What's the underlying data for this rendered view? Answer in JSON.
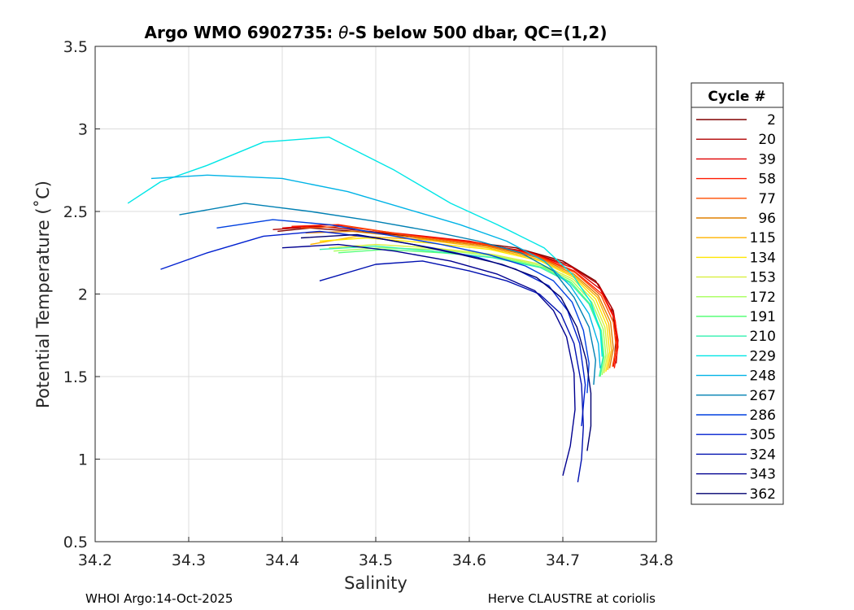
{
  "chart_data": {
    "type": "line",
    "title_prefix": "Argo WMO 6902735: ",
    "title_symbol": "θ",
    "title_suffix": "-S below 500 dbar,  QC=(1,2)",
    "xlabel": "Salinity",
    "ylabel": "Potential Temperature (˚C)",
    "xlim": [
      34.2,
      34.8
    ],
    "ylim": [
      0.5,
      3.5
    ],
    "xticks": [
      "34.2",
      "34.3",
      "34.4",
      "34.5",
      "34.6",
      "34.7",
      "34.8"
    ],
    "yticks": [
      "0.5",
      "1",
      "1.5",
      "2",
      "2.5",
      "3",
      "3.5"
    ],
    "grid": true,
    "legend": {
      "title": "Cycle #",
      "position": "right",
      "entries": [
        {
          "label": "2",
          "color": "#800000"
        },
        {
          "label": "20",
          "color": "#b00000"
        },
        {
          "label": "39",
          "color": "#e00000"
        },
        {
          "label": "58",
          "color": "#ff1a00"
        },
        {
          "label": "77",
          "color": "#ff4d00"
        },
        {
          "label": "96",
          "color": "#e08000"
        },
        {
          "label": "115",
          "color": "#ffb300"
        },
        {
          "label": "134",
          "color": "#ffe600"
        },
        {
          "label": "153",
          "color": "#d9f040"
        },
        {
          "label": "172",
          "color": "#a6ff59"
        },
        {
          "label": "191",
          "color": "#59ff7a"
        },
        {
          "label": "210",
          "color": "#33f0b0"
        },
        {
          "label": "229",
          "color": "#00e6e6"
        },
        {
          "label": "248",
          "color": "#00b3e6"
        },
        {
          "label": "267",
          "color": "#0080b3"
        },
        {
          "label": "286",
          "color": "#0040e0"
        },
        {
          "label": "305",
          "color": "#0020d0"
        },
        {
          "label": "324",
          "color": "#0010b0"
        },
        {
          "label": "343",
          "color": "#000090"
        },
        {
          "label": "362",
          "color": "#000070"
        }
      ]
    },
    "series": [
      {
        "name": "2",
        "color": "#800000",
        "s": [
          34.395,
          34.43,
          34.5,
          34.58,
          34.65,
          34.7,
          34.735,
          34.752,
          34.757,
          34.755
        ],
        "t": [
          2.38,
          2.4,
          2.37,
          2.33,
          2.28,
          2.2,
          2.08,
          1.92,
          1.75,
          1.6
        ]
      },
      {
        "name": "20",
        "color": "#b00000",
        "s": [
          34.39,
          34.44,
          34.51,
          34.59,
          34.66,
          34.705,
          34.738,
          34.754,
          34.759,
          34.757
        ],
        "t": [
          2.39,
          2.41,
          2.37,
          2.32,
          2.26,
          2.18,
          2.06,
          1.9,
          1.72,
          1.58
        ]
      },
      {
        "name": "39",
        "color": "#e00000",
        "s": [
          34.4,
          34.45,
          34.52,
          34.6,
          34.665,
          34.71,
          34.74,
          34.755,
          34.758,
          34.754
        ],
        "t": [
          2.4,
          2.42,
          2.37,
          2.32,
          2.25,
          2.16,
          2.03,
          1.86,
          1.7,
          1.56
        ]
      },
      {
        "name": "58",
        "color": "#ff1a00",
        "s": [
          34.41,
          34.46,
          34.53,
          34.61,
          34.67,
          34.712,
          34.742,
          34.756,
          34.759,
          34.755
        ],
        "t": [
          2.41,
          2.42,
          2.36,
          2.31,
          2.24,
          2.14,
          2.0,
          1.84,
          1.68,
          1.55
        ]
      },
      {
        "name": "77",
        "color": "#ff4d00",
        "s": [
          34.42,
          34.47,
          34.54,
          34.615,
          34.672,
          34.713,
          34.741,
          34.754,
          34.757,
          34.753
        ],
        "t": [
          2.4,
          2.41,
          2.35,
          2.3,
          2.23,
          2.13,
          1.99,
          1.83,
          1.68,
          1.56
        ]
      },
      {
        "name": "96",
        "color": "#e08000",
        "s": [
          34.425,
          34.475,
          34.545,
          34.618,
          34.674,
          34.712,
          34.738,
          34.751,
          34.754,
          34.75
        ],
        "t": [
          2.37,
          2.38,
          2.34,
          2.29,
          2.22,
          2.12,
          1.99,
          1.83,
          1.67,
          1.55
        ]
      },
      {
        "name": "115",
        "color": "#ffb300",
        "s": [
          34.43,
          34.48,
          34.55,
          34.62,
          34.675,
          34.712,
          34.737,
          34.749,
          34.752,
          34.748
        ],
        "t": [
          2.3,
          2.35,
          2.33,
          2.28,
          2.21,
          2.11,
          1.98,
          1.82,
          1.66,
          1.54
        ]
      },
      {
        "name": "134",
        "color": "#ffe600",
        "s": [
          34.44,
          34.49,
          34.555,
          34.622,
          34.676,
          34.712,
          34.735,
          34.747,
          34.75,
          34.746
        ],
        "t": [
          2.32,
          2.34,
          2.31,
          2.27,
          2.2,
          2.1,
          1.97,
          1.81,
          1.65,
          1.53
        ]
      },
      {
        "name": "153",
        "color": "#d9f040",
        "s": [
          34.45,
          34.5,
          34.56,
          34.625,
          34.677,
          34.711,
          34.733,
          34.745,
          34.748,
          34.744
        ],
        "t": [
          2.28,
          2.3,
          2.28,
          2.24,
          2.18,
          2.09,
          1.96,
          1.8,
          1.64,
          1.52
        ]
      },
      {
        "name": "172",
        "color": "#a6ff59",
        "s": [
          34.455,
          34.505,
          34.565,
          34.628,
          34.678,
          34.71,
          34.731,
          34.743,
          34.746,
          34.742
        ],
        "t": [
          2.26,
          2.28,
          2.27,
          2.23,
          2.17,
          2.08,
          1.95,
          1.79,
          1.63,
          1.51
        ]
      },
      {
        "name": "191",
        "color": "#59ff7a",
        "s": [
          34.46,
          34.51,
          34.57,
          34.63,
          34.679,
          34.709,
          34.729,
          34.741,
          34.744,
          34.74
        ],
        "t": [
          2.25,
          2.27,
          2.25,
          2.22,
          2.16,
          2.07,
          1.94,
          1.78,
          1.62,
          1.5
        ]
      },
      {
        "name": "210",
        "color": "#33f0b0",
        "s": [
          34.44,
          34.5,
          34.56,
          34.625,
          34.676,
          34.707,
          34.728,
          34.74,
          34.743,
          34.739
        ],
        "t": [
          2.27,
          2.29,
          2.26,
          2.22,
          2.16,
          2.07,
          1.94,
          1.78,
          1.62,
          1.5
        ]
      },
      {
        "name": "229",
        "color": "#00e6e6",
        "s": [
          34.235,
          34.27,
          34.32,
          34.38,
          34.45,
          34.52,
          34.58,
          34.63,
          34.68,
          34.71,
          34.73,
          34.74,
          34.742
        ],
        "t": [
          2.55,
          2.68,
          2.78,
          2.92,
          2.95,
          2.75,
          2.55,
          2.42,
          2.28,
          2.12,
          1.95,
          1.78,
          1.62
        ]
      },
      {
        "name": "248",
        "color": "#00b3e6",
        "s": [
          34.26,
          34.32,
          34.4,
          34.47,
          34.53,
          34.59,
          34.64,
          34.68,
          34.708,
          34.728,
          34.738,
          34.74
        ],
        "t": [
          2.7,
          2.72,
          2.7,
          2.62,
          2.52,
          2.42,
          2.32,
          2.2,
          2.05,
          1.88,
          1.7,
          1.55
        ]
      },
      {
        "name": "267",
        "color": "#0080b3",
        "s": [
          34.29,
          34.36,
          34.43,
          34.5,
          34.56,
          34.61,
          34.655,
          34.69,
          34.712,
          34.728,
          34.735,
          34.733
        ],
        "t": [
          2.48,
          2.55,
          2.5,
          2.44,
          2.38,
          2.32,
          2.25,
          2.14,
          1.98,
          1.8,
          1.6,
          1.45
        ]
      },
      {
        "name": "286",
        "color": "#0040e0",
        "s": [
          34.33,
          34.39,
          34.45,
          34.51,
          34.57,
          34.62,
          34.66,
          34.69,
          34.71,
          34.722,
          34.728,
          34.726
        ],
        "t": [
          2.4,
          2.45,
          2.42,
          2.36,
          2.3,
          2.24,
          2.17,
          2.08,
          1.95,
          1.78,
          1.58,
          1.4
        ]
      },
      {
        "name": "305",
        "color": "#0020d0",
        "s": [
          34.27,
          34.32,
          34.38,
          34.44,
          34.5,
          34.56,
          34.61,
          34.65,
          34.685,
          34.705,
          34.718,
          34.724,
          34.72
        ],
        "t": [
          2.15,
          2.25,
          2.35,
          2.38,
          2.34,
          2.28,
          2.22,
          2.15,
          2.05,
          1.9,
          1.7,
          1.45,
          1.2
        ]
      },
      {
        "name": "324",
        "color": "#0010b0",
        "s": [
          34.44,
          34.5,
          34.55,
          34.6,
          34.64,
          34.675,
          34.698,
          34.712,
          34.72,
          34.722,
          34.72,
          34.716
        ],
        "t": [
          2.08,
          2.18,
          2.2,
          2.14,
          2.08,
          2.0,
          1.88,
          1.7,
          1.45,
          1.2,
          1.0,
          0.86
        ]
      },
      {
        "name": "343",
        "color": "#000090",
        "s": [
          34.4,
          34.46,
          34.52,
          34.58,
          34.63,
          34.67,
          34.69,
          34.704,
          34.712,
          34.713,
          34.708,
          34.7
        ],
        "t": [
          2.28,
          2.3,
          2.26,
          2.2,
          2.12,
          2.02,
          1.9,
          1.74,
          1.52,
          1.3,
          1.08,
          0.9
        ]
      },
      {
        "name": "362",
        "color": "#000070",
        "s": [
          34.42,
          34.48,
          34.54,
          34.59,
          34.635,
          34.672,
          34.698,
          34.715,
          34.725,
          34.73,
          34.73,
          34.726
        ],
        "t": [
          2.34,
          2.36,
          2.3,
          2.24,
          2.18,
          2.1,
          1.98,
          1.8,
          1.6,
          1.4,
          1.2,
          1.05
        ]
      }
    ]
  },
  "footer": {
    "left": "WHOI Argo:14-Oct-2025",
    "right": "Herve CLAUSTRE at coriolis"
  }
}
